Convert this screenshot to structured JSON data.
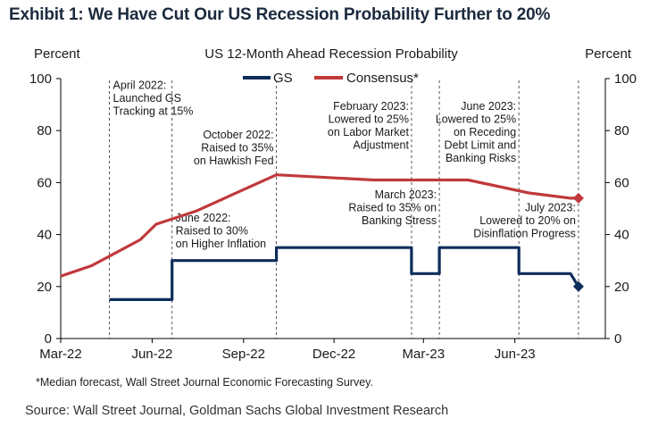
{
  "exhibit": {
    "title": "Exhibit 1: We Have Cut Our US Recession Probability Further to 20%",
    "footnote": "*Median  forecast, Wall Street Journal Economic Forecasting Survey.",
    "source": "Source: Wall Street Journal, Goldman Sachs Global Investment Research"
  },
  "chart_data": {
    "type": "line",
    "title": "US 12-Month  Ahead  Recession Probability",
    "ylabel_left": "Percent",
    "ylabel_right": "Percent",
    "ylim": [
      0,
      100
    ],
    "yticks": [
      0,
      20,
      40,
      60,
      80,
      100
    ],
    "xticks": [
      {
        "date": "2022-03-01",
        "label": "Mar-22"
      },
      {
        "date": "2022-06-01",
        "label": "Jun-22"
      },
      {
        "date": "2022-09-01",
        "label": "Sep-22"
      },
      {
        "date": "2022-12-01",
        "label": "Dec-22"
      },
      {
        "date": "2023-03-01",
        "label": "Mar-23"
      },
      {
        "date": "2023-06-01",
        "label": "Jun-23"
      }
    ],
    "xlim": [
      "2022-03-01",
      "2023-08-31"
    ],
    "grid": false,
    "legend": "top-center",
    "colors": {
      "GS": "#0d2d5a",
      "Consensus": "#c0393b",
      "axis": "#000000",
      "title": "#1b2a3e"
    },
    "series": [
      {
        "name": "GS",
        "style": "step",
        "points": [
          [
            "2022-04-19",
            15
          ],
          [
            "2022-06-21",
            15
          ],
          [
            "2022-06-21",
            30
          ],
          [
            "2022-10-04",
            30
          ],
          [
            "2022-10-04",
            35
          ],
          [
            "2023-02-17",
            35
          ],
          [
            "2023-02-17",
            25
          ],
          [
            "2023-03-17",
            25
          ],
          [
            "2023-03-17",
            35
          ],
          [
            "2023-06-05",
            35
          ],
          [
            "2023-06-05",
            25
          ],
          [
            "2023-07-27",
            25
          ],
          [
            "2023-08-04",
            20
          ]
        ],
        "end_marker": "diamond"
      },
      {
        "name": "Consensus*",
        "style": "line",
        "points": [
          [
            "2022-03-01",
            24
          ],
          [
            "2022-04-01",
            28
          ],
          [
            "2022-05-20",
            38
          ],
          [
            "2022-06-05",
            44
          ],
          [
            "2022-07-15",
            49
          ],
          [
            "2022-10-04",
            63
          ],
          [
            "2023-01-10",
            61
          ],
          [
            "2023-04-15",
            61
          ],
          [
            "2023-06-15",
            56
          ],
          [
            "2023-07-27",
            54
          ],
          [
            "2023-08-04",
            54
          ]
        ],
        "end_marker": "diamond"
      }
    ],
    "annotations": [
      {
        "date": "2022-04-19",
        "lines": [
          "April 2022:",
          "Launched GS",
          "Tracking at 15%"
        ],
        "anchor": "start",
        "y": 96
      },
      {
        "date": "2022-06-21",
        "lines": [
          "June 2022:",
          "Raised to 30%",
          "on Higher Inflation"
        ],
        "anchor": "start",
        "y": 45
      },
      {
        "date": "2022-10-04",
        "lines": [
          "October 2022:",
          "Raised to 35%",
          "on Hawkish Fed"
        ],
        "anchor": "end",
        "y": 77
      },
      {
        "date": "2023-02-17",
        "lines": [
          "February 2023:",
          "Lowered to 25%",
          "on Labor Market",
          "Adjustment"
        ],
        "anchor": "end",
        "y": 88
      },
      {
        "date": "2023-03-17",
        "lines": [
          "March 2023:",
          "Raised to 35% on",
          "Banking Stress"
        ],
        "anchor": "end",
        "y": 54
      },
      {
        "date": "2023-06-05",
        "lines": [
          "June 2023:",
          "Lowered to 25%",
          "on Receding",
          "Debt Limit and",
          "Banking Risks"
        ],
        "anchor": "end",
        "y": 88
      },
      {
        "date": "2023-08-04",
        "lines": [
          "July 2023:",
          "Lowered to 20% on",
          "Disinflation Progress"
        ],
        "anchor": "end",
        "y": 49
      }
    ]
  }
}
